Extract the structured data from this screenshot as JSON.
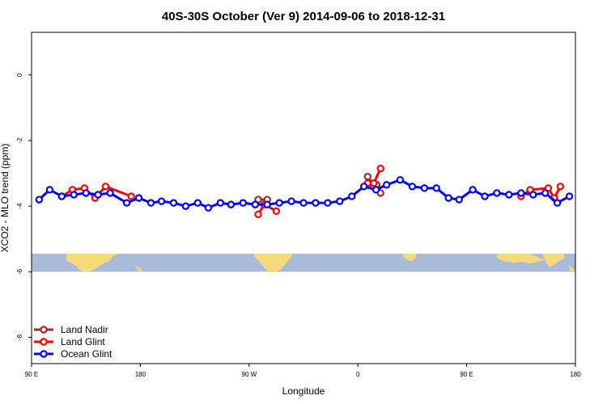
{
  "chart_data": {
    "type": "line",
    "title": "40S-30S October (Ver 9)   2014-09-06 to 2018-12-31",
    "xlabel": "Longitude",
    "ylabel": "XCO2 - MLO trend (ppm)",
    "xlim": [
      90,
      450
    ],
    "ylim": [
      -8.8,
      1.3
    ],
    "x_ticks": [
      {
        "value": 90,
        "label": "90 E"
      },
      {
        "value": 162,
        "label": "180"
      },
      {
        "value": 234,
        "label": "90 W"
      },
      {
        "value": 306,
        "label": "0"
      },
      {
        "value": 378,
        "label": "90 E"
      },
      {
        "value": 450,
        "label": "180"
      }
    ],
    "y_ticks": [
      0,
      -2,
      -4,
      -6,
      -8
    ],
    "map_strip": {
      "y_top": -5.45,
      "y_bottom": -6.0,
      "ocean_color": "#a8bcda",
      "land_color": "#f7d97d"
    },
    "legend": {
      "position": "bottom-left"
    },
    "series": [
      {
        "name": "Land Nadir",
        "color": "#a52a2a",
        "segments": [
          [
            [
              312.5,
              -3.1
            ],
            [
              314.5,
              -3.3
            ],
            [
              318.5,
              -3.35
            ],
            [
              321,
              -3.6
            ]
          ],
          [
            [
              240,
              -3.8
            ],
            [
              246,
              -3.8
            ]
          ]
        ]
      },
      {
        "name": "Land Glint",
        "color": "#ff0000",
        "segments": [
          [
            [
              110,
              -3.7
            ],
            [
              117,
              -3.5
            ],
            [
              125,
              -3.45
            ],
            [
              132,
              -3.75
            ],
            [
              139,
              -3.4
            ],
            [
              156,
              -3.7
            ]
          ],
          [
            [
              240,
              -4.25
            ],
            [
              244,
              -3.95
            ],
            [
              252,
              -4.15
            ]
          ],
          [
            [
              312.5,
              -3.3
            ],
            [
              316.5,
              -3.3
            ],
            [
              321,
              -2.85
            ]
          ],
          [
            [
              414,
              -3.7
            ],
            [
              420,
              -3.5
            ],
            [
              432,
              -3.45
            ],
            [
              436,
              -3.75
            ],
            [
              440,
              -3.4
            ]
          ]
        ]
      },
      {
        "name": "Ocean Glint",
        "color": "#0000ff",
        "segments": [
          [
            [
              95,
              -3.8
            ],
            [
              102,
              -3.5
            ],
            [
              110,
              -3.7
            ],
            [
              118,
              -3.65
            ],
            [
              126,
              -3.6
            ],
            [
              134,
              -3.65
            ],
            [
              142,
              -3.6
            ],
            [
              153,
              -3.9
            ],
            [
              161,
              -3.75
            ],
            [
              169,
              -3.9
            ],
            [
              176,
              -3.85
            ],
            [
              184,
              -3.9
            ],
            [
              192,
              -4.0
            ],
            [
              200,
              -3.9
            ],
            [
              207,
              -4.05
            ],
            [
              215,
              -3.9
            ],
            [
              222,
              -3.95
            ],
            [
              230,
              -3.9
            ],
            [
              238,
              -3.95
            ],
            [
              246,
              -3.95
            ],
            [
              254,
              -3.9
            ],
            [
              262,
              -3.85
            ],
            [
              270,
              -3.9
            ],
            [
              278,
              -3.9
            ],
            [
              286,
              -3.9
            ],
            [
              294,
              -3.85
            ],
            [
              302,
              -3.7
            ],
            [
              310,
              -3.4
            ],
            [
              318,
              -3.5
            ],
            [
              325,
              -3.35
            ],
            [
              334,
              -3.2
            ],
            [
              342,
              -3.4
            ],
            [
              350,
              -3.45
            ],
            [
              358,
              -3.45
            ],
            [
              366,
              -3.75
            ],
            [
              373,
              -3.8
            ],
            [
              382,
              -3.5
            ],
            [
              390,
              -3.7
            ],
            [
              398,
              -3.6
            ],
            [
              406,
              -3.65
            ],
            [
              414,
              -3.6
            ],
            [
              422,
              -3.65
            ],
            [
              430,
              -3.6
            ],
            [
              438,
              -3.9
            ],
            [
              446,
              -3.7
            ]
          ]
        ]
      }
    ]
  }
}
